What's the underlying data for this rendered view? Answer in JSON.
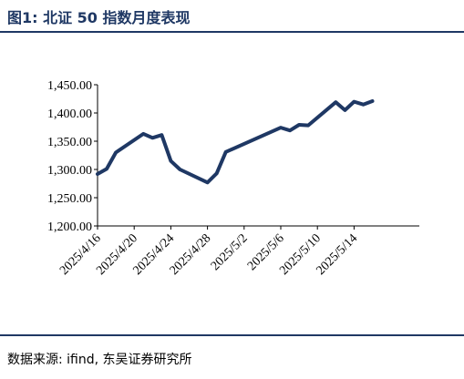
{
  "figure": {
    "title": "图1:  北证 50 指数月度表现",
    "source": "数据来源:  ifind,  东吴证券研究所"
  },
  "chart_data": {
    "type": "line",
    "title": "",
    "xlabel": "",
    "ylabel": "",
    "ylim": [
      1200,
      1450
    ],
    "yticks": [
      1200,
      1250,
      1300,
      1350,
      1400,
      1450
    ],
    "ytick_labels": [
      "1,200.00",
      "1,250.00",
      "1,300.00",
      "1,350.00",
      "1,400.00",
      "1,450.00"
    ],
    "xlim": [
      "2025-04-16",
      "2025-05-17"
    ],
    "xtick_labels": [
      "2025/4/16",
      "2025/4/20",
      "2025/4/24",
      "2025/4/28",
      "2025/5/2",
      "2025/5/6",
      "2025/5/10",
      "2025/5/14"
    ],
    "grid": false,
    "legend": "none",
    "line_color": "#1f3864",
    "series": [
      {
        "x": [
          "2025-04-16",
          "2025-04-17",
          "2025-04-18",
          "2025-04-21",
          "2025-04-22",
          "2025-04-23",
          "2025-04-24",
          "2025-04-25",
          "2025-04-28",
          "2025-04-29",
          "2025-04-30",
          "2025-05-06",
          "2025-05-07",
          "2025-05-08",
          "2025-05-09",
          "2025-05-12",
          "2025-05-13",
          "2025-05-14",
          "2025-05-15",
          "2025-05-16"
        ],
        "values": [
          1292,
          1301,
          1330,
          1363,
          1356,
          1361,
          1315,
          1300,
          1277,
          1293,
          1331,
          1374,
          1369,
          1379,
          1378,
          1419,
          1405,
          1420,
          1415,
          1421
        ]
      }
    ]
  }
}
